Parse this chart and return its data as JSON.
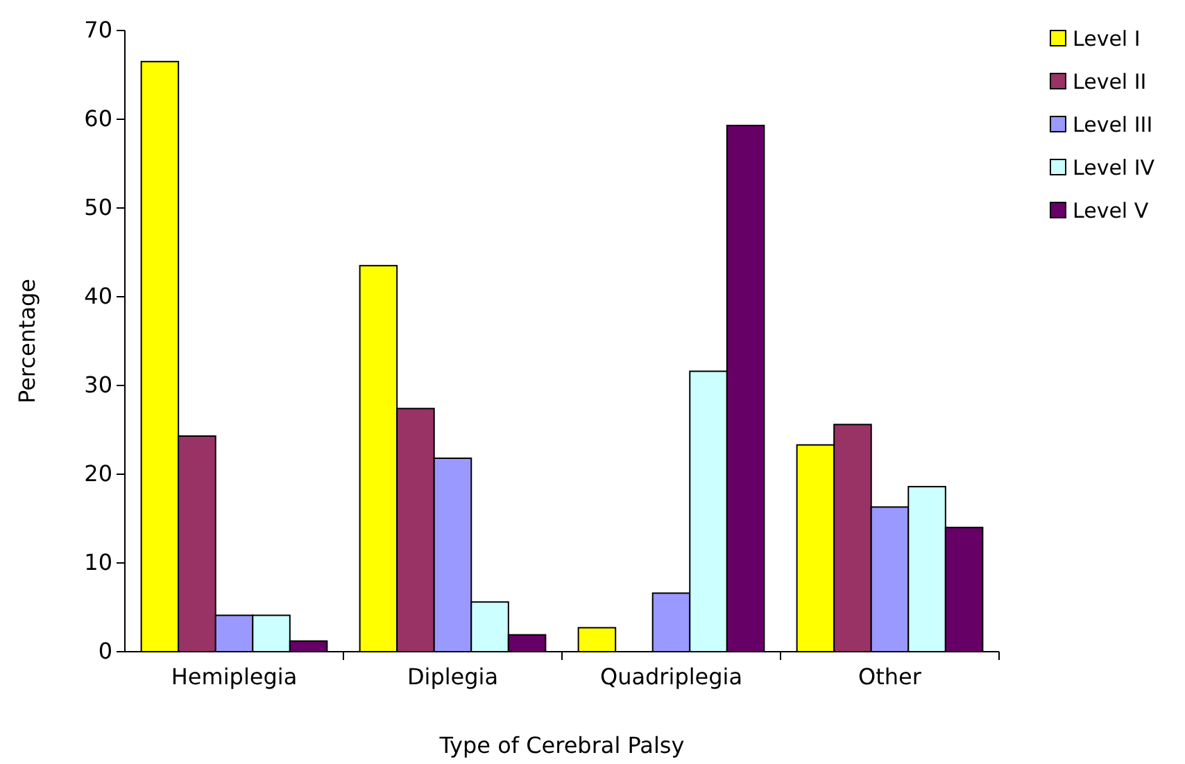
{
  "chart_data": {
    "type": "bar",
    "xlabel": "Type of Cerebral Palsy",
    "ylabel": "Percentage",
    "categories": [
      "Hemiplegia",
      "Diplegia",
      "Quadriplegia",
      "Other"
    ],
    "series": [
      {
        "name": "Level I",
        "color": "#ffff00",
        "values": [
          66.5,
          43.5,
          2.7,
          23.3
        ]
      },
      {
        "name": "Level II",
        "color": "#993366",
        "values": [
          24.3,
          27.4,
          0,
          25.6
        ]
      },
      {
        "name": "Level III",
        "color": "#9999ff",
        "values": [
          4.1,
          21.8,
          6.6,
          16.3
        ]
      },
      {
        "name": "Level IV",
        "color": "#ccffff",
        "values": [
          4.1,
          5.6,
          31.6,
          18.6
        ]
      },
      {
        "name": "Level V",
        "color": "#660066",
        "values": [
          1.2,
          1.9,
          59.3,
          14.0
        ]
      }
    ],
    "ylim": [
      0,
      70
    ],
    "yticks": [
      0,
      10,
      20,
      30,
      40,
      50,
      60,
      70
    ],
    "grid": false,
    "legend": "right"
  }
}
